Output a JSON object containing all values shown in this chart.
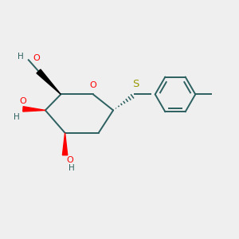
{
  "bg_color": "#efefef",
  "ring_color": "#2d6060",
  "oxygen_color": "#ff0000",
  "sulfur_color": "#999900",
  "oh_gray_color": "#2d6060",
  "benzene_color": "#2d6060",
  "bond_width": 1.4,
  "figsize": [
    3.0,
    3.0
  ],
  "dpi": 100,
  "xlim": [
    -0.5,
    5.2
  ],
  "ylim": [
    -0.8,
    3.2
  ]
}
